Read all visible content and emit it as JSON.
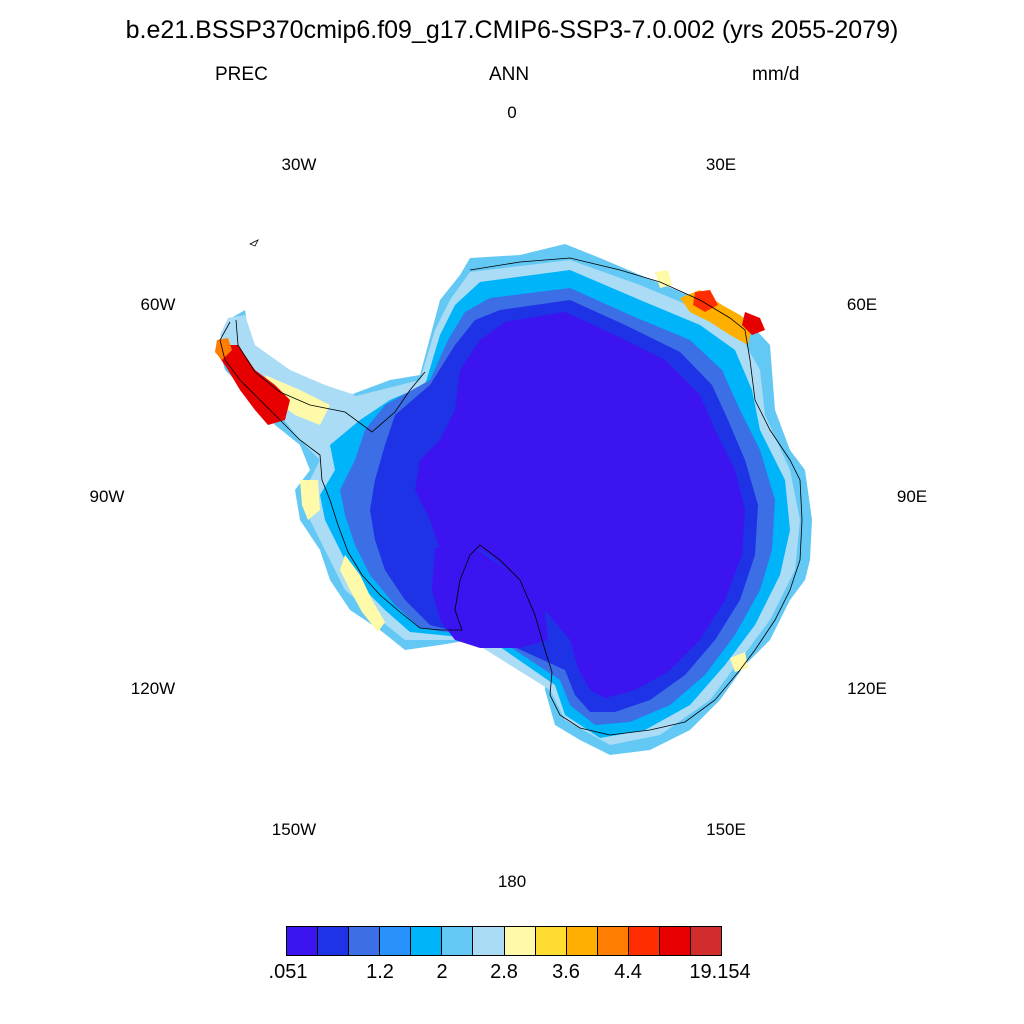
{
  "title": "b.e21.BSSP370cmip6.f09_g17.CMIP6-SSP3-7.0.002 (yrs 2055-2079)",
  "left_string": "PREC",
  "center_string": "ANN",
  "right_string": "mm/d",
  "projection": "polar stereographic, south pole",
  "longitude_labels": {
    "0": "0",
    "30E": "30E",
    "60E": "60E",
    "90E": "90E",
    "120E": "120E",
    "150E": "150E",
    "180": "180",
    "150W": "150W",
    "120W": "120W",
    "90W": "90W",
    "60W": "60W",
    "30W": "30W"
  },
  "colorbar": {
    "colors": [
      "#3c14f0",
      "#1e32e6",
      "#3c6ee6",
      "#2891fa",
      "#00b4fa",
      "#64c8f5",
      "#aadcf5",
      "#fffaaa",
      "#ffdc32",
      "#ffaf00",
      "#ff7d00",
      "#ff2d00",
      "#e60000",
      "#d22d2d"
    ],
    "labels": [
      ".051",
      "1.2",
      "2",
      "2.8",
      "3.6",
      "4.4",
      "19.154"
    ]
  }
}
